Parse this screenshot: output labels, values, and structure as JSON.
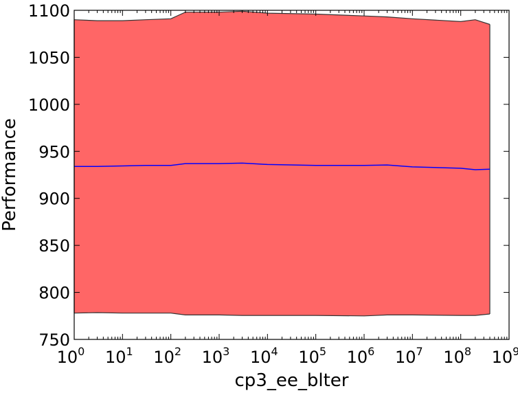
{
  "chart_data": {
    "type": "area",
    "title": "",
    "xlabel": "cp3_ee_blter",
    "ylabel": "Performance",
    "xscale": "log",
    "xlim": [
      1,
      1000000000
    ],
    "ylim": [
      750,
      1100
    ],
    "grid": false,
    "legend": "none",
    "x_ticks": [
      {
        "base": "10",
        "exp": "0",
        "value": 1
      },
      {
        "base": "10",
        "exp": "1",
        "value": 10
      },
      {
        "base": "10",
        "exp": "2",
        "value": 100
      },
      {
        "base": "10",
        "exp": "3",
        "value": 1000
      },
      {
        "base": "10",
        "exp": "4",
        "value": 10000
      },
      {
        "base": "10",
        "exp": "5",
        "value": 100000
      },
      {
        "base": "10",
        "exp": "6",
        "value": 1000000
      },
      {
        "base": "10",
        "exp": "7",
        "value": 10000000
      },
      {
        "base": "10",
        "exp": "8",
        "value": 100000000
      },
      {
        "base": "10",
        "exp": "9",
        "value": 1000000000
      }
    ],
    "y_ticks": [
      "750",
      "800",
      "850",
      "900",
      "950",
      "1000",
      "1050",
      "1100"
    ],
    "x": [
      1,
      3,
      10,
      30,
      100,
      200,
      1000,
      3000,
      10000,
      100000,
      1000000,
      3000000,
      10000000,
      100000000,
      200000000,
      400000000
    ],
    "series": [
      {
        "role": "mean",
        "color": "#0000ff",
        "values": [
          934,
          934,
          934.5,
          935,
          935,
          937,
          937,
          937.5,
          936,
          935,
          935,
          935.5,
          933.5,
          932,
          930.5,
          931
        ]
      },
      {
        "role": "upper",
        "color": "#333333",
        "values": [
          1090,
          1089,
          1089,
          1090,
          1091,
          1098,
          1098,
          1099,
          1097,
          1096,
          1094,
          1093,
          1091,
          1088,
          1090,
          1085
        ]
      },
      {
        "role": "lower",
        "color": "#333333",
        "values": [
          778,
          778.5,
          778,
          778,
          778,
          776,
          776,
          775.5,
          775.5,
          775.5,
          775,
          776,
          776,
          775.5,
          775.5,
          777
        ]
      }
    ],
    "fill_color": "#ff6666"
  }
}
